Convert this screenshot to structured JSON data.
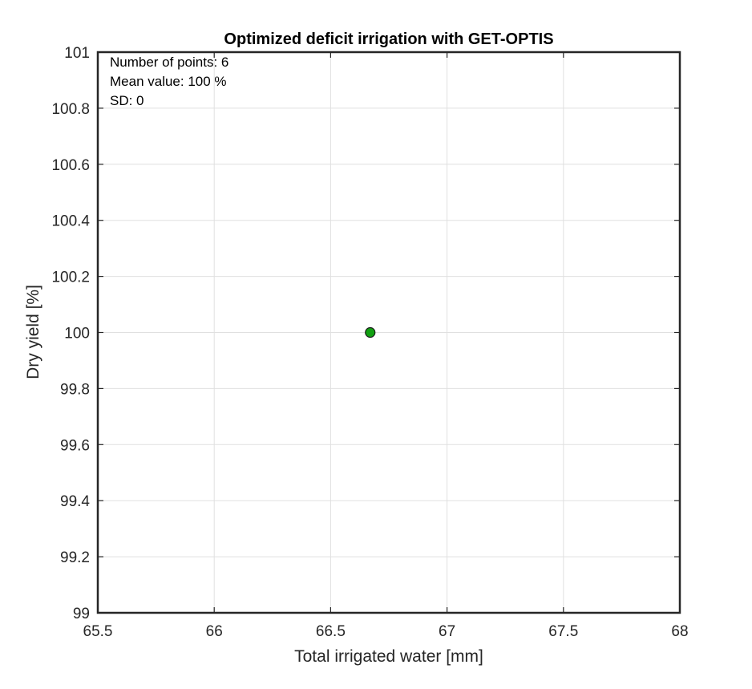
{
  "chart_data": {
    "type": "scatter",
    "title": "Optimized deficit irrigation with GET-OPTIS",
    "xlabel": "Total irrigated water [mm]",
    "ylabel": "Dry yield [%]",
    "xlim": [
      65.5,
      68
    ],
    "ylim": [
      99,
      101
    ],
    "x_ticks": [
      "65.5",
      "66",
      "66.5",
      "67",
      "67.5",
      "68"
    ],
    "y_ticks": [
      "99",
      "99.2",
      "99.4",
      "99.6",
      "99.8",
      "100",
      "100.2",
      "100.4",
      "100.6",
      "100.8",
      "101"
    ],
    "grid": true,
    "annotations": [
      "Number of points: 6",
      "Mean value: 100 %",
      "SD: 0"
    ],
    "series": [
      {
        "points": [
          {
            "x": 66.67,
            "y": 100
          }
        ]
      }
    ],
    "marker_color": "#11a011",
    "grid_color": "#e0e0e0"
  }
}
